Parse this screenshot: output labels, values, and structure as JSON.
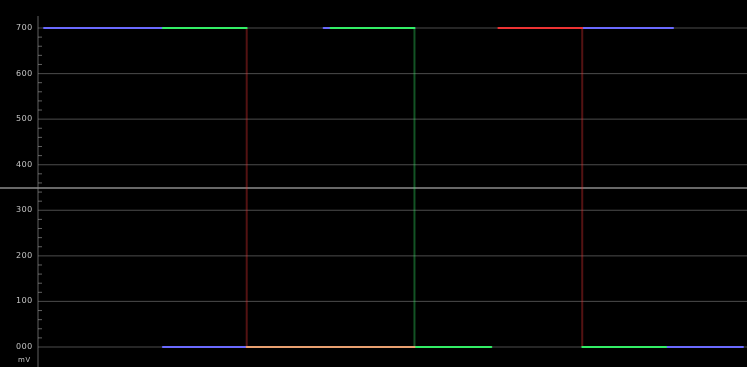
{
  "scope": {
    "unit": "mV",
    "background": "#000000",
    "graticule_color": "#8a8a8a",
    "ticks": [
      {
        "label": "700",
        "value": 700
      },
      {
        "label": "600",
        "value": 600
      },
      {
        "label": "500",
        "value": 500
      },
      {
        "label": "400",
        "value": 400
      },
      {
        "label": "300",
        "value": 300
      },
      {
        "label": "200",
        "value": 200
      },
      {
        "label": "100",
        "value": 100
      },
      {
        "label": "000",
        "value": 0
      }
    ],
    "divider_value": 350
  },
  "chart_data": {
    "type": "line",
    "x_range": [
      0,
      100
    ],
    "ylim": [
      0,
      700
    ],
    "ytick_labels": [
      "700",
      "600",
      "500",
      "400",
      "300",
      "200",
      "100",
      "000"
    ],
    "ylabel": "mV",
    "grid": true,
    "series": [
      {
        "color": "#6a6aff",
        "segments": [
          {
            "x": [
              0,
              17
            ],
            "y": [
              700,
              700
            ]
          },
          {
            "x": [
              17,
              29
            ],
            "y": [
              0,
              0
            ]
          },
          {
            "x": [
              40,
              53
            ],
            "y": [
              700,
              700
            ]
          },
          {
            "x": [
              76,
              90
            ],
            "y": [
              700,
              700
            ]
          },
          {
            "x": [
              89,
              100
            ],
            "y": [
              0,
              0
            ]
          }
        ]
      },
      {
        "color": "#33ee66",
        "segments": [
          {
            "x": [
              17,
              29
            ],
            "y": [
              700,
              700
            ]
          },
          {
            "x": [
              41,
              53
            ],
            "y": [
              700,
              700
            ]
          },
          {
            "x": [
              53,
              64
            ],
            "y": [
              0,
              0
            ]
          },
          {
            "x": [
              77,
              89
            ],
            "y": [
              0,
              0
            ]
          }
        ]
      },
      {
        "color": "#ee3333",
        "segments": [
          {
            "x": [
              65,
              77
            ],
            "y": [
              700,
              700
            ]
          },
          {
            "x": [
              29,
              41
            ],
            "y": [
              0,
              0
            ]
          }
        ]
      },
      {
        "color": "#e8a070",
        "segments": [
          {
            "x": [
              29,
              53
            ],
            "y": [
              0,
              0
            ]
          }
        ]
      }
    ],
    "transitions": [
      {
        "x": 29,
        "color": "#ee3333"
      },
      {
        "x": 53,
        "color": "#33ee66"
      },
      {
        "x": 77,
        "color": "#ee3333"
      }
    ]
  }
}
